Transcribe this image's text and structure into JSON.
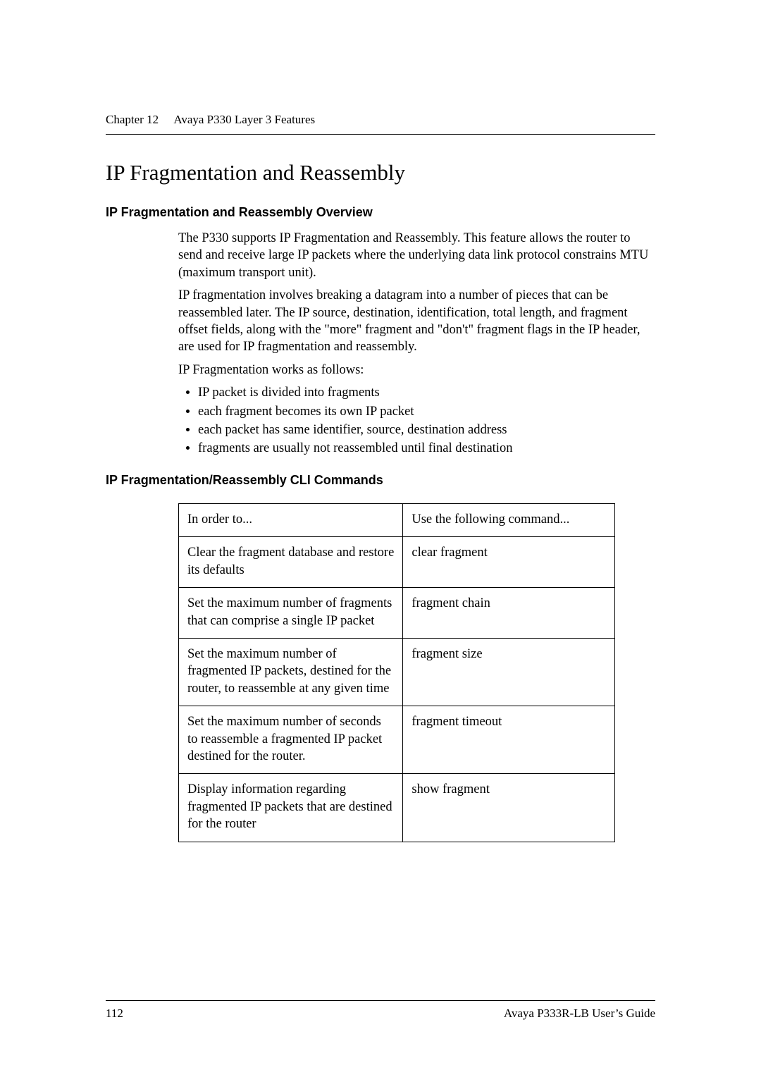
{
  "header": {
    "chapter_label": "Chapter 12",
    "chapter_title": "Avaya P330 Layer 3 Features"
  },
  "h1": "IP Fragmentation and Reassembly",
  "overview": {
    "heading": "IP Fragmentation and Reassembly Overview",
    "p1": "The P330 supports IP Fragmentation and Reassembly. This feature allows the router to send and receive large IP packets where the underlying data link protocol constrains MTU (maximum transport unit).",
    "p2": "IP fragmentation involves breaking a datagram into a number of pieces that can be reassembled later. The IP source, destination, identification, total length, and fragment offset fields, along with the \"more\" fragment and \"don't\" fragment flags in the IP header, are used for IP fragmentation and reassembly.",
    "p3": "IP Fragmentation works as follows:",
    "bullets": [
      "IP packet is divided into fragments",
      "each fragment becomes its own IP packet",
      "each packet has same identifier, source, destination address",
      "fragments are usually not reassembled until final destination"
    ]
  },
  "cli": {
    "heading": "IP Fragmentation/Reassembly CLI Commands",
    "header_row": {
      "col1": "In order to...",
      "col2": "Use the following command..."
    },
    "rows": [
      {
        "col1": "Clear the fragment database and restore its defaults",
        "col2": "clear fragment"
      },
      {
        "col1": "Set the maximum number of fragments that can comprise a single IP packet",
        "col2": "fragment chain"
      },
      {
        "col1": "Set the maximum number of fragmented IP packets, destined for the router, to reassemble at any given time",
        "col2": "fragment size"
      },
      {
        "col1": "Set the maximum number of seconds to reassemble a fragmented IP packet destined for the router.",
        "col2": "fragment timeout"
      },
      {
        "col1": "Display information regarding fragmented IP packets that are destined for the router",
        "col2": "show fragment"
      }
    ]
  },
  "footer": {
    "page_number": "112",
    "guide_title": "Avaya P333R-LB User’s Guide"
  }
}
